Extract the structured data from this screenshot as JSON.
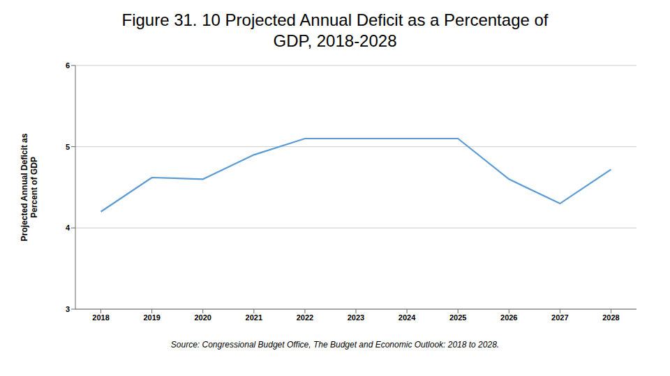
{
  "chart_data": {
    "type": "line",
    "title": "Figure 31. 10 Projected Annual Deficit as a Percentage of\nGDP, 2018-2028",
    "y_label": "Projected Annual Deficit as\nPercent of GDP",
    "annotations": [
      "Source: Congressional Budget Office, The Budget and Economic Outlook: 2018 to 2028."
    ],
    "x": [
      2018,
      2019,
      2020,
      2021,
      2022,
      2023,
      2024,
      2025,
      2026,
      2027,
      2028
    ],
    "values": [
      4.2,
      4.62,
      4.6,
      4.9,
      5.1,
      5.1,
      5.1,
      5.1,
      4.6,
      4.3,
      4.72
    ],
    "color": "#5B9BD5",
    "xlim": [
      2017.5,
      2028.5
    ],
    "xticks": [
      2018,
      2019,
      2020,
      2021,
      2022,
      2023,
      2024,
      2025,
      2026,
      2027,
      2028
    ],
    "ylim": [
      3,
      6
    ],
    "yticks": [
      3,
      4,
      5,
      6
    ],
    "grid": true
  }
}
